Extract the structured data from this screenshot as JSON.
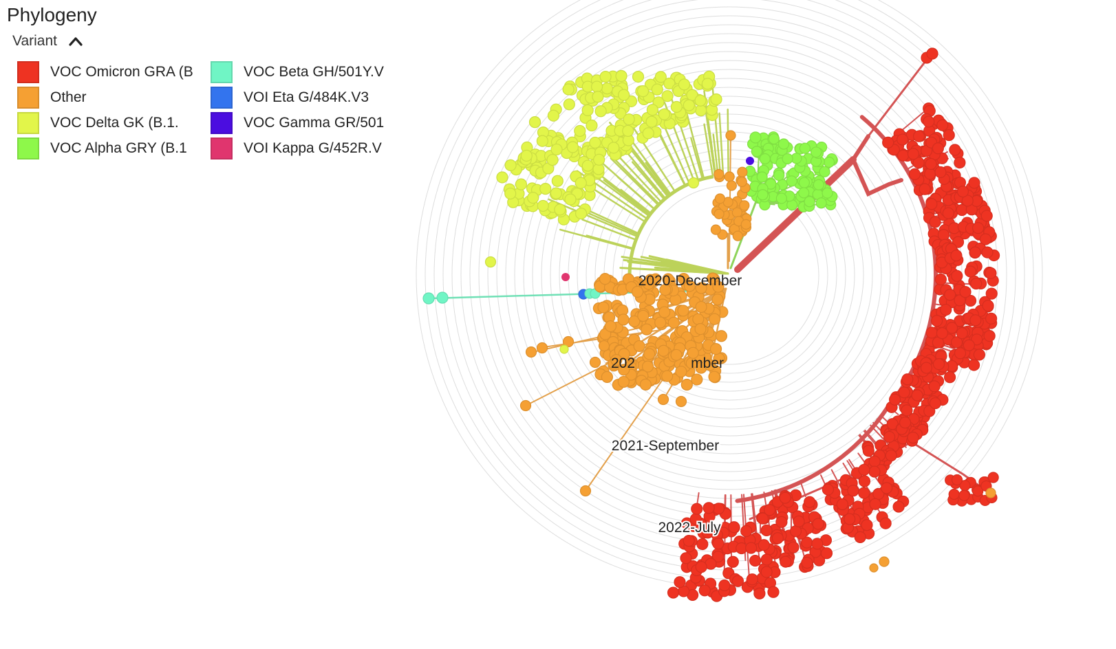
{
  "panel": {
    "title": "Phylogeny"
  },
  "legend": {
    "toggle_label": "Variant",
    "toggle_icon": "chevron-up-icon",
    "columns": [
      [
        {
          "label": "VOC Omicron GRA (B",
          "color": "#ee3322"
        },
        {
          "label": "Other",
          "color": "#f5a033"
        },
        {
          "label": "VOC Delta GK (B.1.",
          "color": "#e2f54a"
        },
        {
          "label": "VOC Alpha GRY (B.1",
          "color": "#8ef84a"
        }
      ],
      [
        {
          "label": "VOC Beta GH/501Y.V",
          "color": "#70f5c5"
        },
        {
          "label": "VOI Eta G/484K.V3",
          "color": "#3374ee"
        },
        {
          "label": "VOC Gamma GR/501",
          "color": "#4b0de0"
        },
        {
          "label": "VOI Kappa G/452R.V",
          "color": "#e0356e"
        }
      ]
    ]
  },
  "tree": {
    "layout": "radial",
    "time_labels": [
      "2020-December",
      "2021-September",
      "2022-July"
    ],
    "partial_time_labels": {
      "first": "202",
      "second_left": "202",
      "second_right": "mber"
    },
    "branch_colors": {
      "omicron": "#d45454",
      "delta": "#bcd25a",
      "other": "#e3a04b",
      "alpha": "#8fd45a",
      "beta": "#6fe0b5"
    },
    "ring_color": "#dddddd"
  }
}
